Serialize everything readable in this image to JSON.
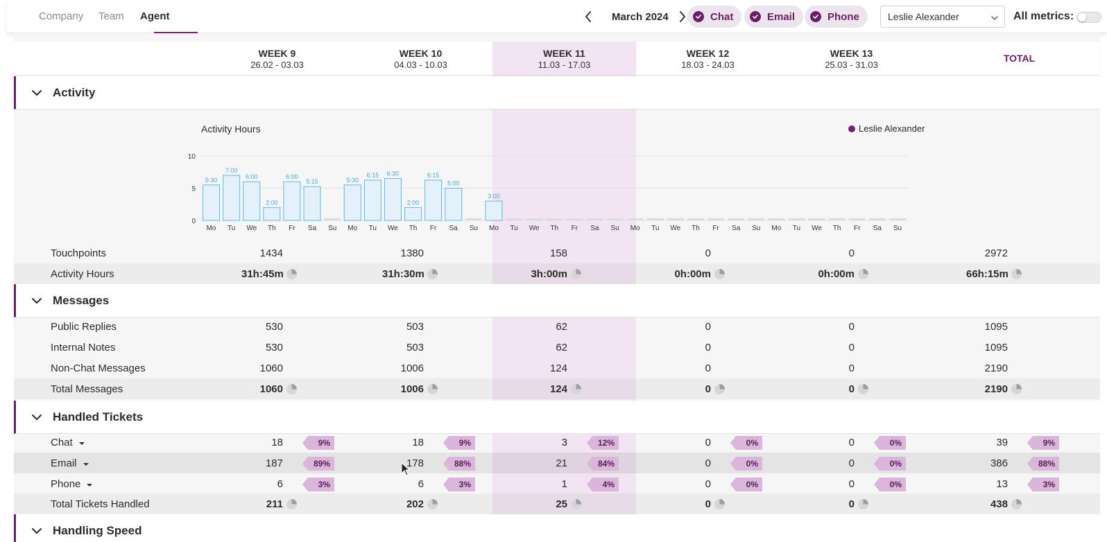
{
  "nav": {
    "tabs": [
      {
        "label": "Company",
        "active": false
      },
      {
        "label": "Team",
        "active": false
      },
      {
        "label": "Agent",
        "active": true
      }
    ],
    "month": "March 2024",
    "channels": [
      "Chat",
      "Email",
      "Phone"
    ],
    "agent": "Leslie Alexander",
    "all_metrics_label": "All metrics:",
    "all_metrics_on": false
  },
  "weeks": [
    {
      "name": "WEEK 9",
      "dates": "26.02 - 03.03"
    },
    {
      "name": "WEEK 10",
      "dates": "04.03 - 10.03"
    },
    {
      "name": "WEEK 11",
      "dates": "11.03 - 17.03"
    },
    {
      "name": "WEEK 12",
      "dates": "18.03 - 24.03"
    },
    {
      "name": "WEEK 13",
      "dates": "25.03 - 31.03"
    }
  ],
  "total_label": "TOTAL",
  "colors": {
    "accent": "#6b1f66",
    "highlight": "#f2e4f2",
    "bar_fill": "#e4f1fb",
    "bar_stroke": "#5bb8e6"
  },
  "activity": {
    "title": "Activity",
    "chart_data": {
      "type": "bar",
      "title": "Activity Hours",
      "legend": [
        "Leslie Alexander"
      ],
      "yticks": [
        0,
        5,
        10
      ],
      "ylim": [
        0,
        10
      ],
      "categories": [
        "Mo",
        "Tu",
        "We",
        "Th",
        "Fr",
        "Sa",
        "Su",
        "Mo",
        "Tu",
        "We",
        "Th",
        "Fr",
        "Sa",
        "Su",
        "Mo",
        "Tu",
        "We",
        "Th",
        "Fr",
        "Sa",
        "Su",
        "Mo",
        "Tu",
        "We",
        "Th",
        "Fr",
        "Sa",
        "Su",
        "Mo",
        "Tu",
        "We",
        "Th",
        "Fr",
        "Sa",
        "Su"
      ],
      "values": [
        5.5,
        7.0,
        6.0,
        2.0,
        6.0,
        5.25,
        0,
        5.5,
        6.25,
        6.5,
        2.0,
        6.25,
        5.0,
        0,
        3.0,
        0,
        0,
        0,
        0,
        0,
        0,
        0,
        0,
        0,
        0,
        0,
        0,
        0,
        0,
        0,
        0,
        0,
        0,
        0,
        0
      ],
      "labels": [
        "5:30",
        "7:00",
        "6:00",
        "2:00",
        "6:00",
        "5:15",
        "",
        "5:30",
        "6:15",
        "6:30",
        "2:00",
        "6:15",
        "5:00",
        "",
        "3:00",
        "",
        "",
        "",
        "",
        "",
        "",
        "",
        "",
        "",
        "",
        "",
        "",
        "",
        "",
        "",
        "",
        "",
        "",
        "",
        ""
      ]
    },
    "rows": [
      {
        "label": "Touchpoints",
        "values": [
          "1434",
          "1380",
          "158",
          "0",
          "0",
          "2972"
        ],
        "bold": false,
        "pie": false
      },
      {
        "label": "Activity Hours",
        "values": [
          "31h:45m",
          "31h:30m",
          "3h:00m",
          "0h:00m",
          "0h:00m",
          "66h:15m"
        ],
        "bold": true,
        "pie": true
      }
    ]
  },
  "messages": {
    "title": "Messages",
    "rows": [
      {
        "label": "Public Replies",
        "values": [
          "530",
          "503",
          "62",
          "0",
          "0",
          "1095"
        ],
        "bold": false,
        "pie": false
      },
      {
        "label": "Internal Notes",
        "values": [
          "530",
          "503",
          "62",
          "0",
          "0",
          "1095"
        ],
        "bold": false,
        "pie": false
      },
      {
        "label": "Non-Chat Messages",
        "values": [
          "1060",
          "1006",
          "124",
          "0",
          "0",
          "2190"
        ],
        "bold": false,
        "pie": false
      },
      {
        "label": "Total Messages",
        "values": [
          "1060",
          "1006",
          "124",
          "0",
          "0",
          "2190"
        ],
        "bold": true,
        "pie": true
      }
    ]
  },
  "tickets": {
    "title": "Handled Tickets",
    "rows": [
      {
        "label": "Chat",
        "values": [
          "18",
          "18",
          "3",
          "0",
          "0",
          "39"
        ],
        "pcts": [
          "9%",
          "9%",
          "12%",
          "0%",
          "0%",
          "9%"
        ]
      },
      {
        "label": "Email",
        "values": [
          "187",
          "178",
          "21",
          "0",
          "0",
          "386"
        ],
        "pcts": [
          "89%",
          "88%",
          "84%",
          "0%",
          "0%",
          "88%"
        ]
      },
      {
        "label": "Phone",
        "values": [
          "6",
          "6",
          "1",
          "0",
          "0",
          "13"
        ],
        "pcts": [
          "3%",
          "3%",
          "4%",
          "0%",
          "0%",
          "3%"
        ]
      }
    ],
    "total": {
      "label": "Total Tickets Handled",
      "values": [
        "211",
        "202",
        "25",
        "0",
        "0",
        "438"
      ]
    }
  },
  "speed": {
    "title": "Handling Speed"
  }
}
